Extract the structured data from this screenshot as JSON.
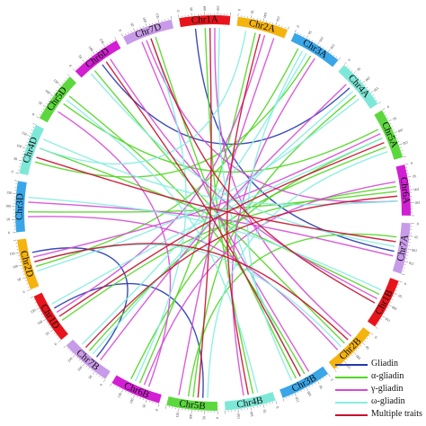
{
  "chromosomes": [
    {
      "name": "Chr1A",
      "color": "#e8141b"
    },
    {
      "name": "Chr2A",
      "color": "#f5b30e"
    },
    {
      "name": "Chr3A",
      "color": "#3aa6e8"
    },
    {
      "name": "Chr4A",
      "color": "#7ee8d8"
    },
    {
      "name": "Chr5A",
      "color": "#5cd83e"
    },
    {
      "name": "Chr6A",
      "color": "#d21fd3"
    },
    {
      "name": "Chr7A",
      "color": "#c89be8"
    },
    {
      "name": "Chr1B",
      "color": "#e8141b"
    },
    {
      "name": "Chr2B",
      "color": "#f5b30e"
    },
    {
      "name": "Chr3B",
      "color": "#3aa6e8"
    },
    {
      "name": "Chr4B",
      "color": "#7ee8d8"
    },
    {
      "name": "Chr5B",
      "color": "#5cd83e"
    },
    {
      "name": "Chr6B",
      "color": "#d21fd3"
    },
    {
      "name": "Chr7B",
      "color": "#c89be8"
    },
    {
      "name": "Chr1D",
      "color": "#e8141b"
    },
    {
      "name": "Chr2D",
      "color": "#f5b30e"
    },
    {
      "name": "Chr3D",
      "color": "#3aa6e8"
    },
    {
      "name": "Chr4D",
      "color": "#7ee8d8"
    },
    {
      "name": "Chr5D",
      "color": "#5cd83e"
    },
    {
      "name": "Chr6D",
      "color": "#d21fd3"
    },
    {
      "name": "Chr7D",
      "color": "#c89be8"
    }
  ],
  "tick_labels": [
    "0",
    "50",
    "100",
    "150"
  ],
  "legend": [
    {
      "label": "Gliadin",
      "color": "#2338b0"
    },
    {
      "label": "α-gliadin",
      "color": "#52d624"
    },
    {
      "label": "γ-gliadin",
      "color": "#d64ad6"
    },
    {
      "label": "ω-gliadin",
      "color": "#86ede0"
    },
    {
      "label": "Multiple traits",
      "color": "#c8102e"
    }
  ],
  "links": [
    {
      "trait": "Gliadin",
      "from": [
        0,
        0.3
      ],
      "to": [
        6,
        0.6
      ]
    },
    {
      "trait": "Gliadin",
      "from": [
        13,
        0.4
      ],
      "to": [
        15,
        0.7
      ]
    },
    {
      "trait": "Gliadin",
      "from": [
        19,
        0.5
      ],
      "to": [
        3,
        0.4
      ]
    },
    {
      "trait": "Gliadin",
      "from": [
        14,
        0.6
      ],
      "to": [
        11,
        0.3
      ]
    },
    {
      "trait": "α-gliadin",
      "from": [
        0,
        0.5
      ],
      "to": [
        10,
        0.4
      ]
    },
    {
      "trait": "α-gliadin",
      "from": [
        1,
        0.4
      ],
      "to": [
        12,
        0.5
      ]
    },
    {
      "trait": "α-gliadin",
      "from": [
        2,
        0.5
      ],
      "to": [
        17,
        0.3
      ]
    },
    {
      "trait": "α-gliadin",
      "from": [
        4,
        0.3
      ],
      "to": [
        18,
        0.5
      ]
    },
    {
      "trait": "α-gliadin",
      "from": [
        4,
        0.7
      ],
      "to": [
        13,
        0.6
      ]
    },
    {
      "trait": "α-gliadin",
      "from": [
        5,
        0.5
      ],
      "to": [
        16,
        0.4
      ]
    },
    {
      "trait": "α-gliadin",
      "from": [
        6,
        0.3
      ],
      "to": [
        11,
        0.6
      ]
    },
    {
      "trait": "α-gliadin",
      "from": [
        8,
        0.5
      ],
      "to": [
        19,
        0.3
      ]
    },
    {
      "trait": "α-gliadin",
      "from": [
        9,
        0.4
      ],
      "to": [
        18,
        0.7
      ]
    },
    {
      "trait": "α-gliadin",
      "from": [
        11,
        0.5
      ],
      "to": [
        3,
        0.6
      ]
    },
    {
      "trait": "α-gliadin",
      "from": [
        12,
        0.7
      ],
      "to": [
        4,
        0.5
      ]
    },
    {
      "trait": "α-gliadin",
      "from": [
        14,
        0.3
      ],
      "to": [
        5,
        0.4
      ]
    },
    {
      "trait": "α-gliadin",
      "from": [
        15,
        0.4
      ],
      "to": [
        2,
        0.2
      ]
    },
    {
      "trait": "α-gliadin",
      "from": [
        17,
        0.6
      ],
      "to": [
        7,
        0.4
      ]
    },
    {
      "trait": "α-gliadin",
      "from": [
        20,
        0.6
      ],
      "to": [
        9,
        0.6
      ]
    },
    {
      "trait": "γ-gliadin",
      "from": [
        0,
        0.7
      ],
      "to": [
        8,
        0.3
      ]
    },
    {
      "trait": "γ-gliadin",
      "from": [
        1,
        0.6
      ],
      "to": [
        14,
        0.5
      ]
    },
    {
      "trait": "γ-gliadin",
      "from": [
        3,
        0.3
      ],
      "to": [
        13,
        0.3
      ]
    },
    {
      "trait": "γ-gliadin",
      "from": [
        5,
        0.3
      ],
      "to": [
        12,
        0.4
      ]
    },
    {
      "trait": "γ-gliadin",
      "from": [
        6,
        0.7
      ],
      "to": [
        16,
        0.6
      ]
    },
    {
      "trait": "γ-gliadin",
      "from": [
        7,
        0.5
      ],
      "to": [
        19,
        0.7
      ]
    },
    {
      "trait": "γ-gliadin",
      "from": [
        9,
        0.3
      ],
      "to": [
        20,
        0.3
      ]
    },
    {
      "trait": "γ-gliadin",
      "from": [
        10,
        0.6
      ],
      "to": [
        2,
        0.6
      ]
    },
    {
      "trait": "γ-gliadin",
      "from": [
        12,
        0.3
      ],
      "to": [
        18,
        0.3
      ]
    },
    {
      "trait": "γ-gliadin",
      "from": [
        15,
        0.6
      ],
      "to": [
        4,
        0.4
      ]
    },
    {
      "trait": "γ-gliadin",
      "from": [
        16,
        0.3
      ],
      "to": [
        8,
        0.7
      ]
    },
    {
      "trait": "γ-gliadin",
      "from": [
        20,
        0.4
      ],
      "to": [
        5,
        0.7
      ]
    },
    {
      "trait": "γ-gliadin",
      "from": [
        11,
        0.8
      ],
      "to": [
        1,
        0.8
      ]
    },
    {
      "trait": "ω-gliadin",
      "from": [
        0,
        0.8
      ],
      "to": [
        9,
        0.5
      ]
    },
    {
      "trait": "ω-gliadin",
      "from": [
        1,
        0.2
      ],
      "to": [
        17,
        0.6
      ]
    },
    {
      "trait": "ω-gliadin",
      "from": [
        2,
        0.4
      ],
      "to": [
        13,
        0.8
      ]
    },
    {
      "trait": "ω-gliadin",
      "from": [
        3,
        0.7
      ],
      "to": [
        15,
        0.3
      ]
    },
    {
      "trait": "ω-gliadin",
      "from": [
        4,
        0.5
      ],
      "to": [
        14,
        0.7
      ]
    },
    {
      "trait": "ω-gliadin",
      "from": [
        5,
        0.7
      ],
      "to": [
        17,
        0.8
      ]
    },
    {
      "trait": "ω-gliadin",
      "from": [
        6,
        0.5
      ],
      "to": [
        19,
        0.2
      ]
    },
    {
      "trait": "ω-gliadin",
      "from": [
        7,
        0.3
      ],
      "to": [
        16,
        0.7
      ]
    },
    {
      "trait": "ω-gliadin",
      "from": [
        8,
        0.6
      ],
      "to": [
        15,
        0.5
      ]
    },
    {
      "trait": "ω-gliadin",
      "from": [
        10,
        0.3
      ],
      "to": [
        18,
        0.6
      ]
    },
    {
      "trait": "ω-gliadin",
      "from": [
        12,
        0.6
      ],
      "to": [
        20,
        0.5
      ]
    },
    {
      "trait": "ω-gliadin",
      "from": [
        13,
        0.5
      ],
      "to": [
        3,
        0.5
      ]
    },
    {
      "trait": "ω-gliadin",
      "from": [
        11,
        0.2
      ],
      "to": [
        4,
        0.8
      ]
    },
    {
      "trait": "ω-gliadin",
      "from": [
        9,
        0.7
      ],
      "to": [
        2,
        0.3
      ]
    },
    {
      "trait": "Multiple traits",
      "from": [
        0,
        0.6
      ],
      "to": [
        11,
        0.4
      ]
    },
    {
      "trait": "Multiple traits",
      "from": [
        20,
        0.5
      ],
      "to": [
        7,
        0.6
      ]
    },
    {
      "trait": "Multiple traits",
      "from": [
        14,
        0.4
      ],
      "to": [
        4,
        0.6
      ]
    },
    {
      "trait": "Multiple traits",
      "from": [
        19,
        0.6
      ],
      "to": [
        9,
        0.5
      ]
    },
    {
      "trait": "Multiple traits",
      "from": [
        17,
        0.4
      ],
      "to": [
        6,
        0.4
      ]
    },
    {
      "trait": "Multiple traits",
      "from": [
        1,
        0.5
      ],
      "to": [
        10,
        0.5
      ]
    },
    {
      "trait": "Multiple traits",
      "from": [
        13,
        0.7
      ],
      "to": [
        5,
        0.6
      ]
    },
    {
      "trait": "Multiple traits",
      "from": [
        15,
        0.5
      ],
      "to": [
        8,
        0.4
      ]
    }
  ]
}
